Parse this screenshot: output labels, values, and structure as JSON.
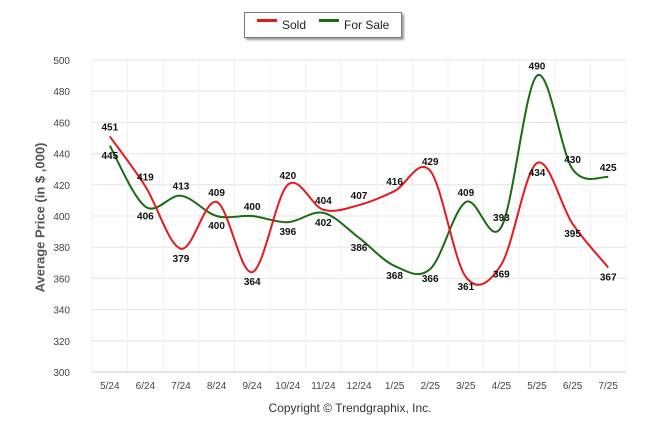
{
  "chart_data": {
    "type": "line",
    "categories": [
      "5/24",
      "6/24",
      "7/24",
      "8/24",
      "9/24",
      "10/24",
      "11/24",
      "12/24",
      "1/25",
      "2/25",
      "3/25",
      "4/25",
      "5/25",
      "6/25",
      "7/25"
    ],
    "series": [
      {
        "name": "Sold",
        "color": "#e8191c",
        "values": [
          451,
          419,
          379,
          409,
          364,
          420,
          404,
          407,
          416,
          429,
          361,
          369,
          434,
          395,
          367
        ]
      },
      {
        "name": "For Sale",
        "color": "#1a6b12",
        "values": [
          445,
          406,
          413,
          400,
          400,
          396,
          402,
          386,
          368,
          366,
          409,
          393,
          490,
          430,
          425
        ]
      }
    ],
    "ylabel": "Average Price (in $ ,000)",
    "xlabel": "",
    "ylim": [
      300,
      500
    ],
    "yticks": [
      300,
      320,
      340,
      360,
      380,
      400,
      420,
      440,
      460,
      480,
      500
    ],
    "grid": true,
    "legend_placement": "top-center"
  },
  "footer": {
    "copyright": "Copyright © Trendgraphix, Inc."
  }
}
